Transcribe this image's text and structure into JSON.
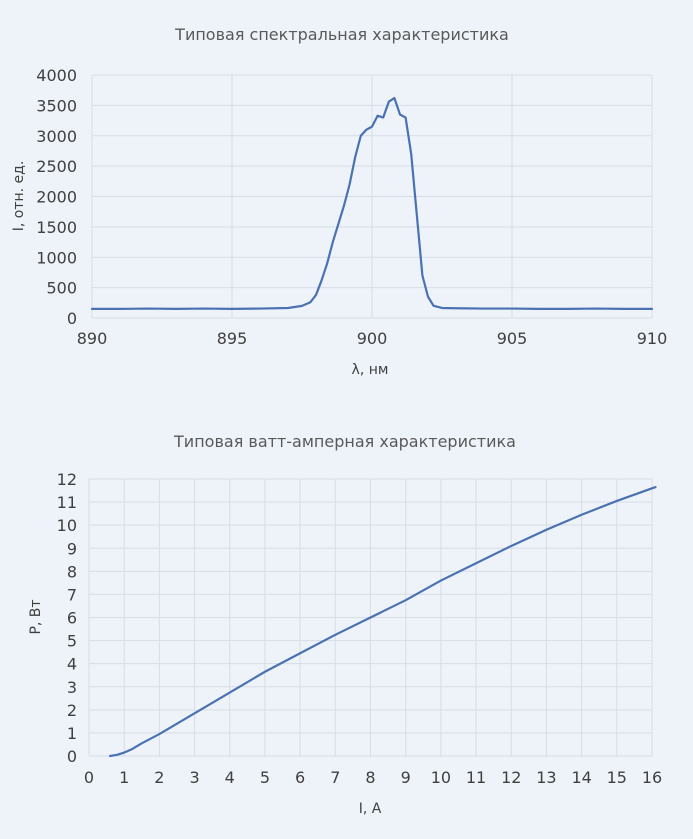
{
  "chart_data": [
    {
      "type": "line",
      "title": "Типовая спектральная характеристика",
      "xlabel": "λ, нм",
      "ylabel": "I, отн. ед.",
      "xlim": [
        890,
        910
      ],
      "ylim": [
        0,
        4000
      ],
      "xticks": [
        "890",
        "895",
        "900",
        "905",
        "910"
      ],
      "yticks": [
        "0",
        "500",
        "1000",
        "1500",
        "2000",
        "2500",
        "3000",
        "3500",
        "4000"
      ],
      "grid": true,
      "series": [
        {
          "x": [
            890,
            891,
            892,
            893,
            894,
            895,
            896,
            897,
            897.5,
            897.8,
            898.0,
            898.2,
            898.4,
            898.6,
            898.8,
            899.0,
            899.2,
            899.4,
            899.6,
            899.8,
            900.0,
            900.2,
            900.4,
            900.6,
            900.8,
            901.0,
            901.2,
            901.4,
            901.6,
            901.8,
            902.0,
            902.2,
            902.5,
            903,
            904,
            905,
            906,
            907,
            908,
            909,
            910
          ],
          "y": [
            150,
            150,
            155,
            150,
            155,
            150,
            155,
            165,
            200,
            260,
            380,
            620,
            900,
            1250,
            1550,
            1850,
            2200,
            2650,
            3000,
            3100,
            3150,
            3330,
            3300,
            3560,
            3620,
            3350,
            3300,
            2700,
            1700,
            700,
            350,
            200,
            165,
            160,
            155,
            155,
            150,
            150,
            155,
            150,
            150
          ],
          "color": "#4a72b2"
        }
      ]
    },
    {
      "type": "line",
      "title": "Типовая ватт-амперная характеристика",
      "xlabel": "I, А",
      "ylabel": "P, Вт",
      "xlim": [
        0,
        16
      ],
      "ylim": [
        0,
        12
      ],
      "xticks": [
        "0",
        "1",
        "2",
        "3",
        "4",
        "5",
        "6",
        "7",
        "8",
        "9",
        "10",
        "11",
        "12",
        "13",
        "14",
        "15",
        "16"
      ],
      "yticks": [
        "0",
        "1",
        "2",
        "3",
        "4",
        "5",
        "6",
        "7",
        "8",
        "9",
        "10",
        "11",
        "12"
      ],
      "grid": true,
      "series": [
        {
          "x": [
            0.6,
            0.8,
            1.0,
            1.2,
            1.5,
            2,
            3,
            4,
            5,
            6,
            7,
            8,
            9,
            10,
            11,
            12,
            13,
            14,
            15,
            16.1
          ],
          "y": [
            0.0,
            0.05,
            0.15,
            0.28,
            0.55,
            0.95,
            1.85,
            2.75,
            3.65,
            4.45,
            5.25,
            6.0,
            6.75,
            7.6,
            8.35,
            9.1,
            9.8,
            10.45,
            11.05,
            11.65
          ],
          "color": "#4a72b2"
        }
      ]
    }
  ]
}
